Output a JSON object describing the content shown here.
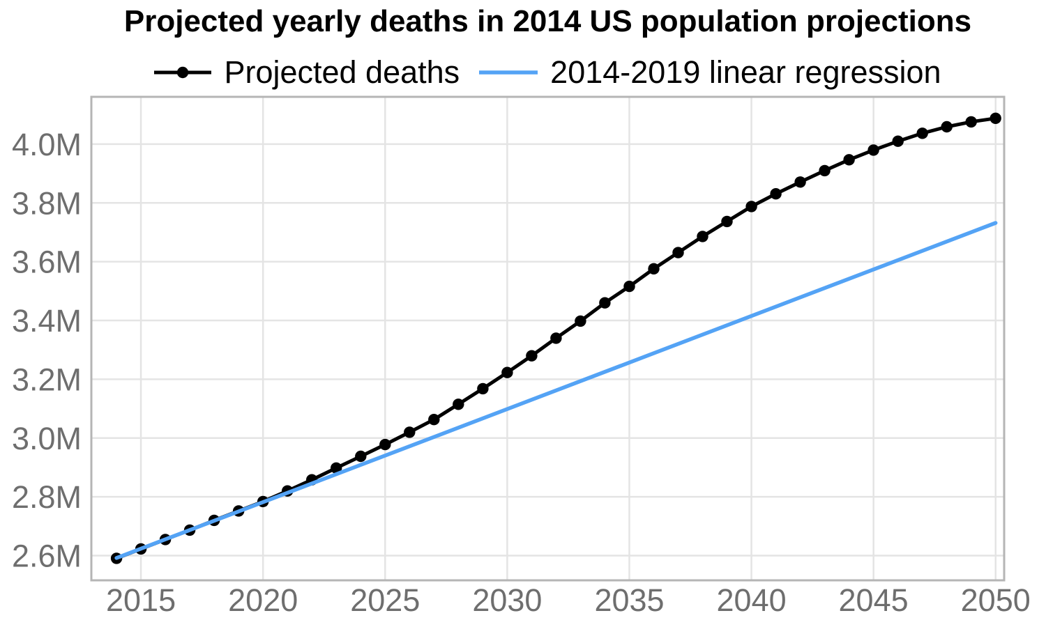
{
  "chart_data": {
    "type": "line",
    "title": "Projected yearly deaths in 2014 US population projections",
    "xlabel": "",
    "ylabel": "",
    "legend_position": "top-center",
    "grid": "major-only",
    "xlim": [
      2012.97,
      2050.35
    ],
    "ylim": [
      2.516,
      4.161
    ],
    "x_ticks": {
      "values": [
        2015,
        2020,
        2025,
        2030,
        2035,
        2040,
        2045,
        2050
      ],
      "labels": [
        "2015",
        "2020",
        "2025",
        "2030",
        "2035",
        "2040",
        "2045",
        "2050"
      ]
    },
    "y_ticks": {
      "values": [
        2.6,
        2.8,
        3.0,
        3.2,
        3.4,
        3.6,
        3.8,
        4.0
      ],
      "labels": [
        "2.6M",
        "2.8M",
        "3.0M",
        "3.2M",
        "3.4M",
        "3.6M",
        "3.8M",
        "4.0M"
      ]
    },
    "value_unit": "millions of deaths per year",
    "series": [
      {
        "name": "Projected deaths",
        "style": "line-with-markers",
        "color": "#000000",
        "x": [
          2014,
          2015,
          2016,
          2017,
          2018,
          2019,
          2020,
          2021,
          2022,
          2023,
          2024,
          2025,
          2026,
          2027,
          2028,
          2029,
          2030,
          2031,
          2032,
          2033,
          2034,
          2035,
          2036,
          2037,
          2038,
          2039,
          2040,
          2041,
          2042,
          2043,
          2044,
          2045,
          2046,
          2047,
          2048,
          2049,
          2050
        ],
        "y": [
          2.591,
          2.623,
          2.655,
          2.687,
          2.72,
          2.752,
          2.784,
          2.82,
          2.858,
          2.898,
          2.938,
          2.978,
          3.02,
          3.063,
          3.115,
          3.168,
          3.223,
          3.28,
          3.34,
          3.398,
          3.46,
          3.516,
          3.576,
          3.631,
          3.686,
          3.737,
          3.788,
          3.831,
          3.871,
          3.91,
          3.947,
          3.98,
          4.01,
          4.037,
          4.059,
          4.076,
          4.088
        ]
      },
      {
        "name": "2014-2019 linear regression",
        "style": "line",
        "color": "#54a3f5",
        "x": [
          2014,
          2050
        ],
        "y": [
          2.592,
          3.732
        ]
      }
    ],
    "style": {
      "background": "#ffffff",
      "grid_color": "#e4e4e4",
      "panel_border_color": "#b5b5b5",
      "tick_label_color": "#6e6e6e",
      "title_color": "#000000"
    }
  }
}
